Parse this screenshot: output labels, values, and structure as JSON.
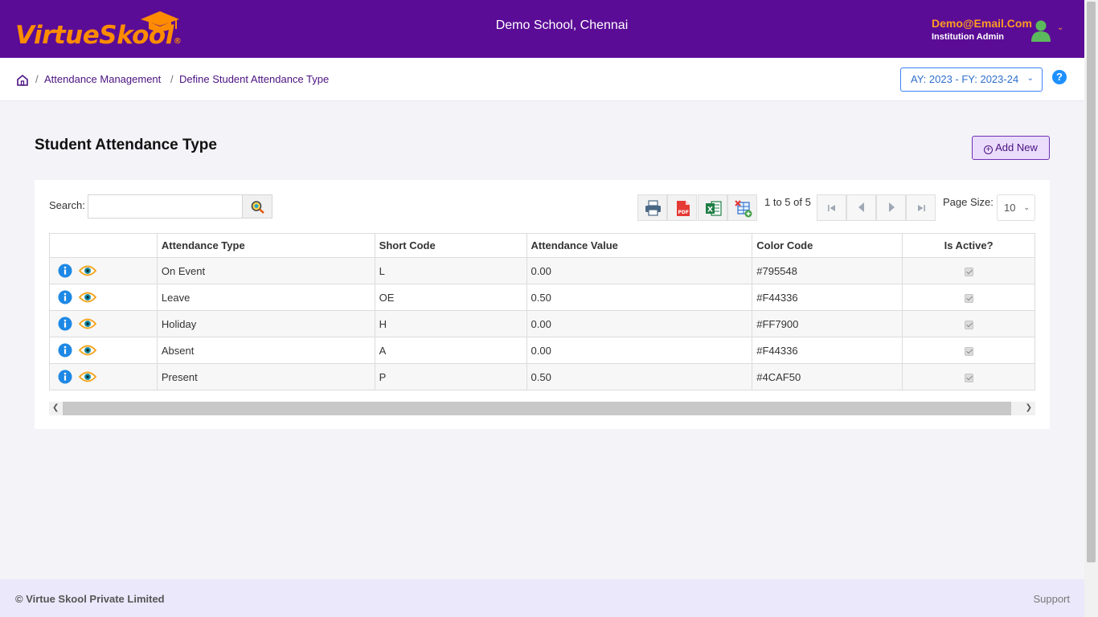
{
  "header": {
    "logo_text": "VirtueSkool",
    "logo_reg": "®",
    "school": "Demo School, Chennai",
    "user_email": "Demo@Email.Com",
    "user_role": "Institution Admin"
  },
  "breadcrumb": {
    "items": [
      "Attendance Management",
      "Define Student Attendance Type"
    ],
    "separator": "/"
  },
  "academic_year": "AY: 2023 - FY: 2023-24",
  "help_label": "?",
  "page": {
    "title": "Student Attendance Type",
    "add_label": "Add New"
  },
  "toolbar": {
    "search_label": "Search:",
    "search_value": "",
    "record_count": "1 to 5 of 5",
    "page_size_label": "Page Size:",
    "page_size": "10"
  },
  "table": {
    "columns": [
      "",
      "Attendance Type",
      "Short Code",
      "Attendance Value",
      "Color Code",
      "Is Active?"
    ],
    "rows": [
      {
        "type": "On Event",
        "code": "L",
        "value": "0.00",
        "color": "#795548",
        "active": true
      },
      {
        "type": "Leave",
        "code": "OE",
        "value": "0.50",
        "color": "#F44336",
        "active": true
      },
      {
        "type": "Holiday",
        "code": "H",
        "value": "0.00",
        "color": "#FF7900",
        "active": true
      },
      {
        "type": "Absent",
        "code": "A",
        "value": "0.00",
        "color": "#F44336",
        "active": true
      },
      {
        "type": "Present",
        "code": "P",
        "value": "0.50",
        "color": "#4CAF50",
        "active": true
      }
    ]
  },
  "footer": {
    "copyright": "© Virtue Skool Private Limited",
    "support": "Support"
  },
  "colors": {
    "brand_purple": "#5b0c96",
    "brand_orange": "#ff8c00",
    "accent_blue": "#3b82f6"
  },
  "icons": [
    "home-icon",
    "user-avatar-icon",
    "chevron-down-icon",
    "help-icon",
    "add-circle-icon",
    "search-icon",
    "print-icon",
    "pdf-icon",
    "excel-icon",
    "excel-export-icon",
    "first-page-icon",
    "prev-page-icon",
    "next-page-icon",
    "last-page-icon",
    "info-icon",
    "view-icon"
  ]
}
